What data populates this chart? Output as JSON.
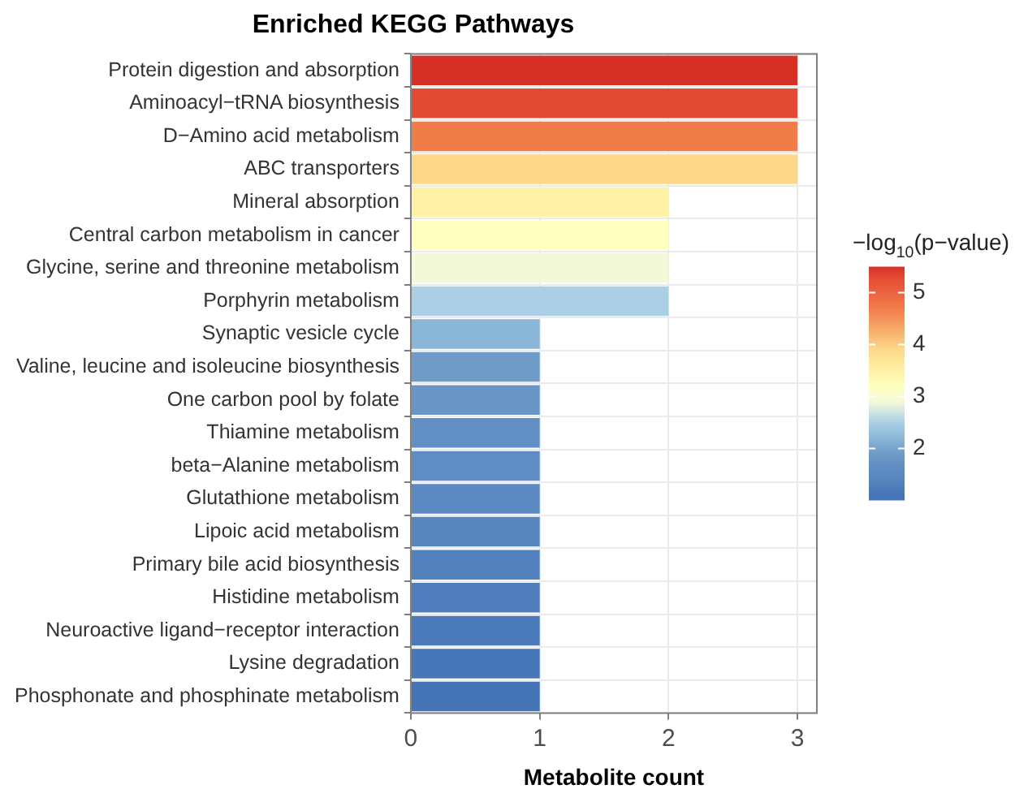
{
  "chart_data": {
    "type": "bar",
    "orientation": "horizontal",
    "title": "Enriched KEGG Pathways",
    "xlabel": "Metabolite count",
    "clabel": "−log$_{10}$(p−value)",
    "categories": [
      "Protein digestion and absorption",
      "Aminoacyl−tRNA biosynthesis",
      "D−Amino acid metabolism",
      "ABC transporters",
      "Mineral absorption",
      "Central carbon metabolism in cancer",
      "Glycine, serine and threonine metabolism",
      "Porphyrin metabolism",
      "Synaptic vesicle cycle",
      "Valine, leucine and isoleucine biosynthesis",
      "One carbon pool by folate",
      "Thiamine metabolism",
      "beta−Alanine metabolism",
      "Glutathione metabolism",
      "Lipoic acid metabolism",
      "Primary bile acid biosynthesis",
      "Histidine metabolism",
      "Neuroactive ligand−receptor interaction",
      "Lysine degradation",
      "Phosphonate and phosphinate metabolism"
    ],
    "values": [
      3,
      3,
      3,
      3,
      2,
      2,
      2,
      2,
      1,
      1,
      1,
      1,
      1,
      1,
      1,
      1,
      1,
      1,
      1,
      1
    ],
    "cvalues": [
      5.5,
      5.3,
      4.7,
      3.9,
      3.5,
      3.2,
      2.9,
      2.5,
      2.2,
      1.9,
      1.8,
      1.7,
      1.6,
      1.5,
      1.4,
      1.3,
      1.25,
      1.2,
      1.1,
      1.0
    ],
    "colors": [
      "#d73027",
      "#e34a33",
      "#f07c4a",
      "#fdd88a",
      "#fef0a5",
      "#ffffbf",
      "#f3f9d8",
      "#abd0e6",
      "#8ab6d8",
      "#6f9bc9",
      "#6895c6",
      "#6390c4",
      "#5f8cc2",
      "#5b88c0",
      "#5785be",
      "#5381bd",
      "#4f7dbb",
      "#4b7aba",
      "#4776b8",
      "#4574b7"
    ],
    "xlim": [
      0,
      3.15
    ],
    "xticks": [
      0,
      1,
      2,
      3
    ],
    "clim": [
      1.0,
      5.5
    ],
    "cticks": [
      2,
      3,
      4,
      5
    ],
    "grid": true,
    "legend": false
  }
}
